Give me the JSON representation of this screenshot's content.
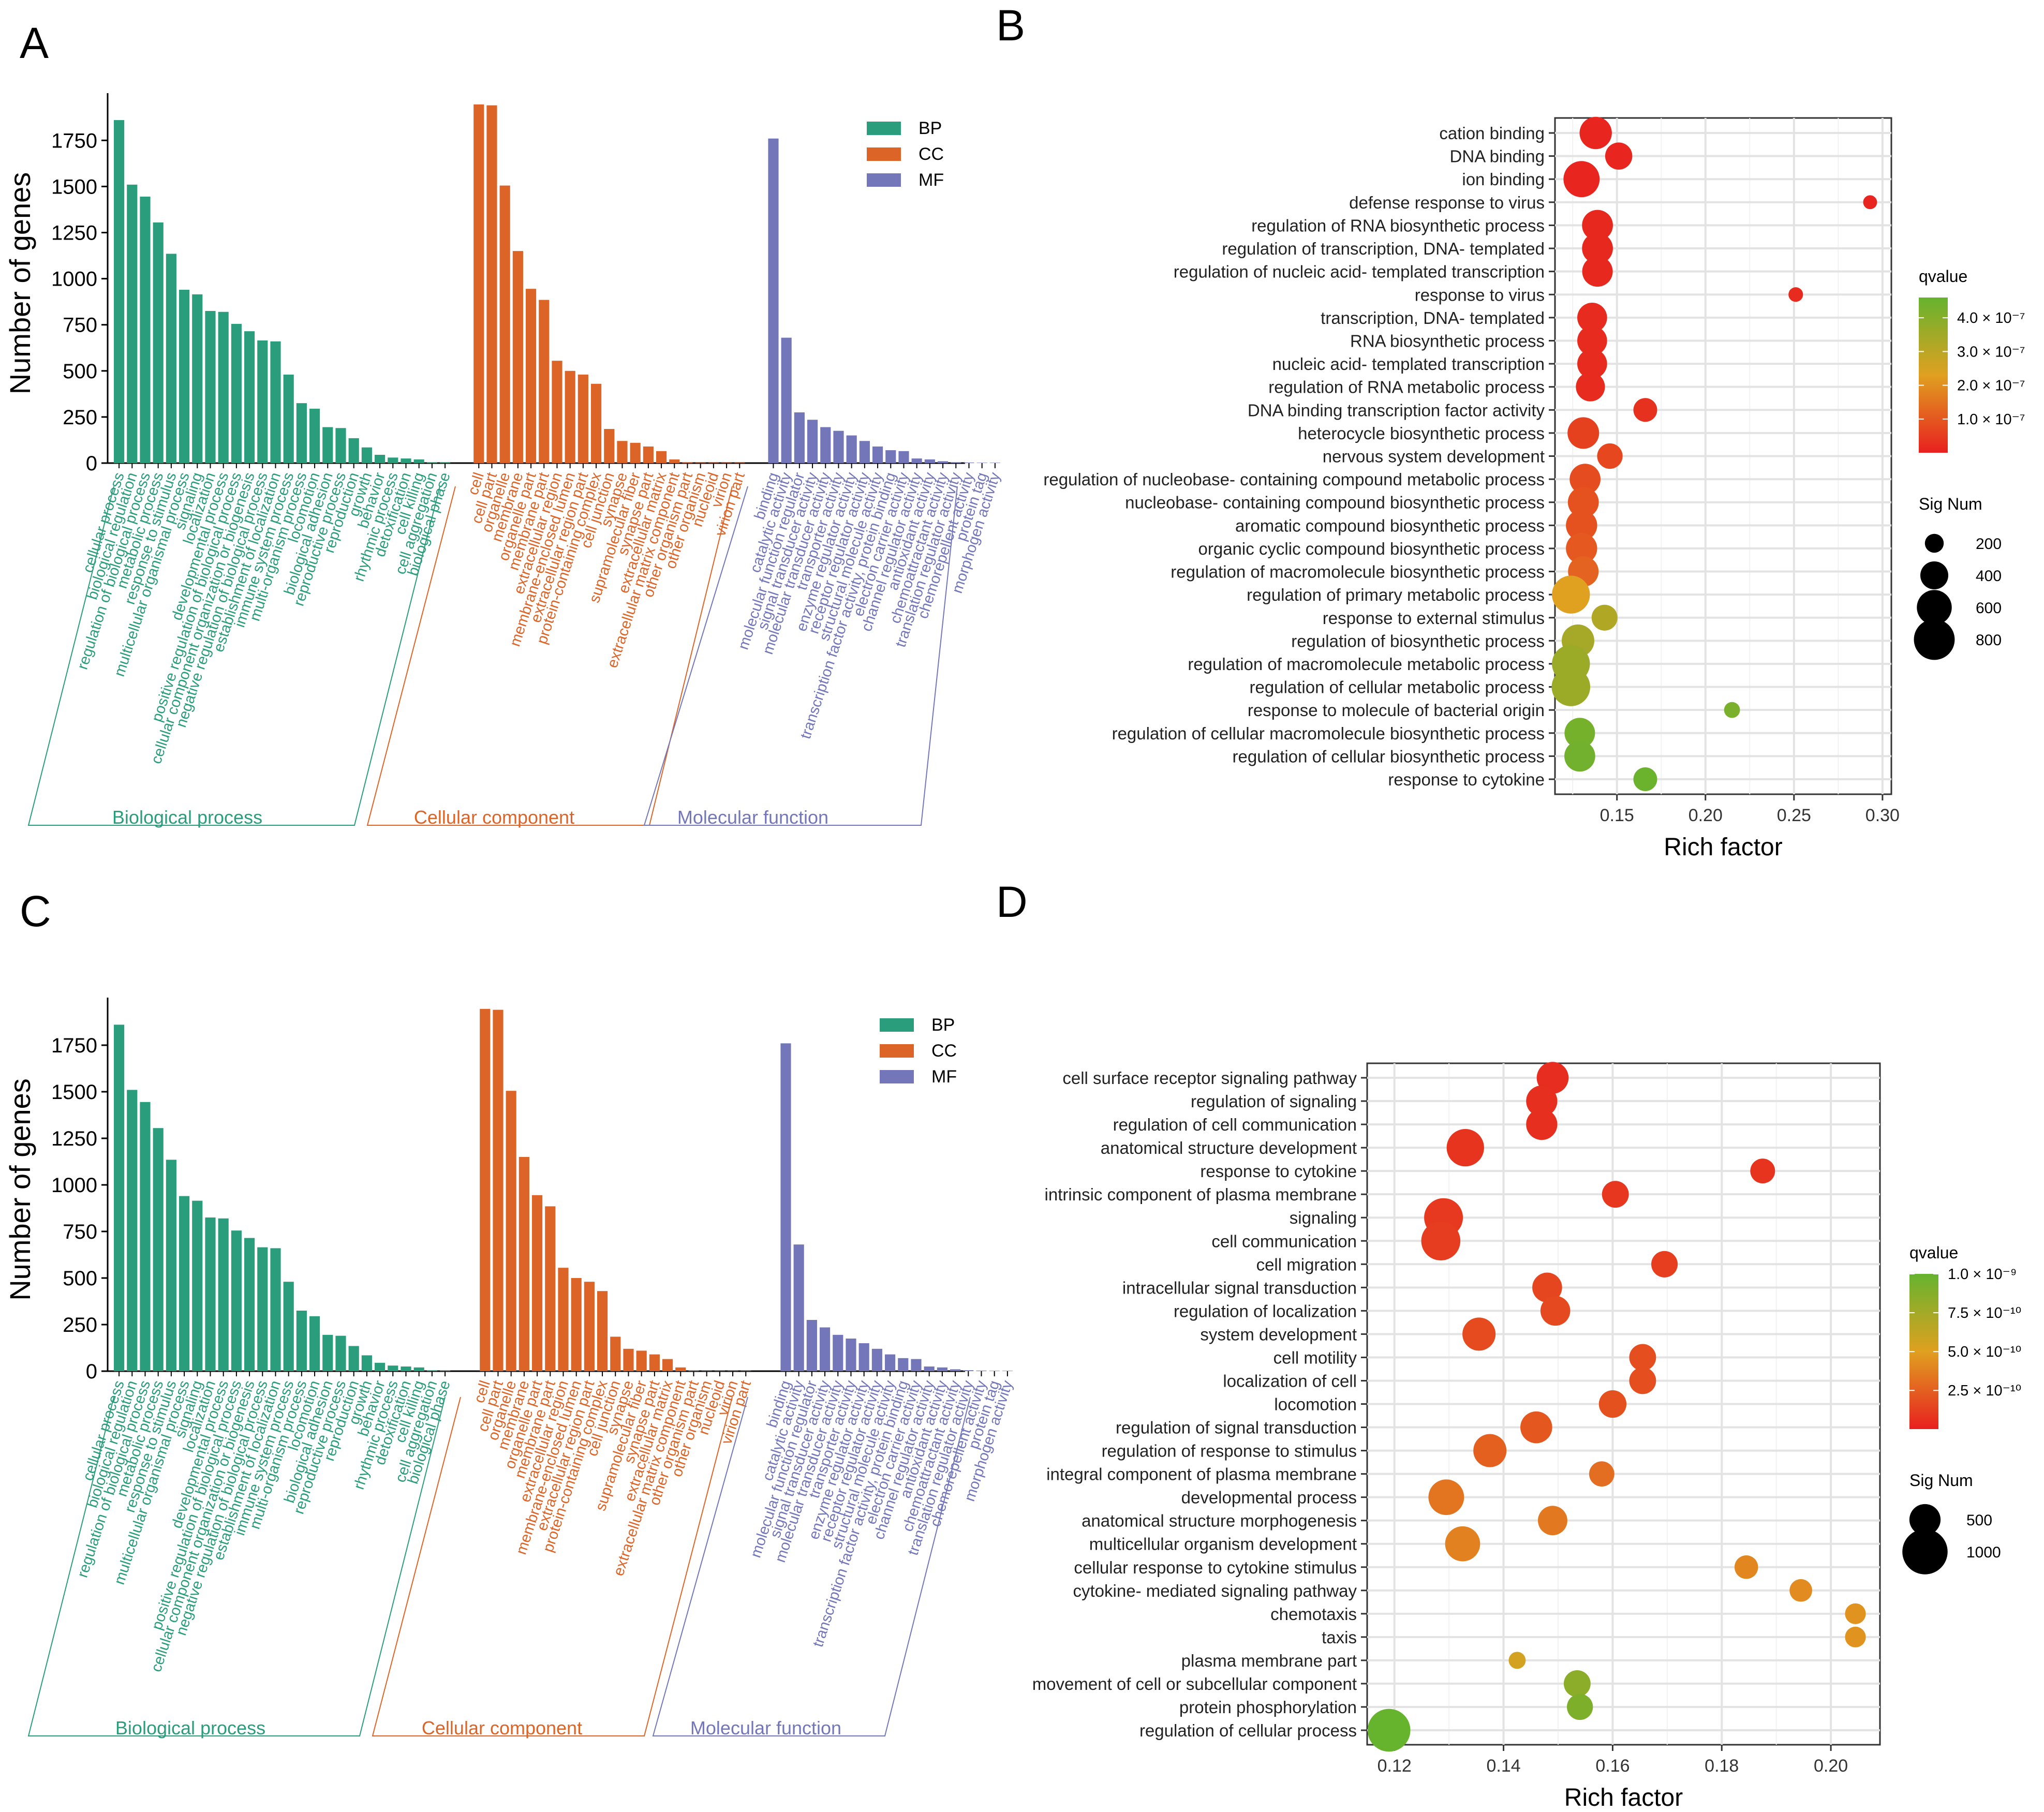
{
  "colors": {
    "bp": "#2a9d7c",
    "cc": "#dd6427",
    "mf": "#7377b9",
    "q_high": "#e8201f",
    "q_mid": "#e0a020",
    "q_low": "#66b32e"
  },
  "chart_data": [
    {
      "panel": "A",
      "type": "bar",
      "ylabel": "Number of genes",
      "ylim": [
        0,
        1950
      ],
      "yticks": [
        "0",
        "250",
        "500",
        "750",
        "1000",
        "1250",
        "1500",
        "1750"
      ],
      "legend": [
        "BP",
        "CC",
        "MF"
      ],
      "groups": [
        {
          "key": "BP",
          "name": "Biological process",
          "categories": [
            "cellular process",
            "biological regulation",
            "regulation of biological process",
            "metabolic process",
            "response to stimulus",
            "multicellular organismal process",
            "signaling",
            "localization",
            "developmental process",
            "positive regulation of biological process",
            "cellular component organization or biogenesis",
            "negative regulation of biological process",
            "establishment of localization",
            "immune system process",
            "multi-organism process",
            "locomotion",
            "biological adhesion",
            "reproductive process",
            "reproduction",
            "growth",
            "behavior",
            "rhythmic process",
            "detoxification",
            "cell killing",
            "cell aggregation",
            "biological phase"
          ],
          "values": [
            1860,
            1510,
            1445,
            1305,
            1135,
            940,
            915,
            825,
            820,
            755,
            715,
            665,
            660,
            480,
            325,
            295,
            195,
            190,
            135,
            85,
            45,
            30,
            25,
            20,
            5,
            3
          ]
        },
        {
          "key": "CC",
          "name": "Cellular component",
          "categories": [
            "cell",
            "cell part",
            "organelle",
            "membrane",
            "organelle part",
            "membrane part",
            "extracellular region",
            "membrane-enclosed lumen",
            "extracellular region part",
            "protein-containing complex",
            "cell junction",
            "synapse",
            "supramolecular fiber",
            "synapse part",
            "extracellular matrix",
            "extracellular matrix component",
            "other organism part",
            "other organism",
            "nucleoid",
            "virion",
            "virion part"
          ],
          "values": [
            1945,
            1940,
            1505,
            1150,
            945,
            885,
            555,
            500,
            480,
            430,
            185,
            120,
            110,
            90,
            65,
            20,
            3,
            2,
            2,
            2,
            2
          ]
        },
        {
          "key": "MF",
          "name": "Molecular function",
          "categories": [
            "binding",
            "catalytic activity",
            "molecular function regulator",
            "signal transducer activity",
            "molecular transducer activity",
            "transporter activity",
            "enzyme regulator activity",
            "receptor regulator activity",
            "structural molecule activity",
            "transcription factor activity, protein binding",
            "electron carrier activity",
            "channel regulator activity",
            "antioxidant activity",
            "chemoattractant activity",
            "translation regulator activity",
            "chemorepellent activity",
            "protein tag",
            "morphogen activity"
          ],
          "values": [
            1760,
            680,
            275,
            235,
            195,
            175,
            150,
            120,
            90,
            70,
            65,
            25,
            20,
            10,
            5,
            3,
            2,
            2
          ]
        }
      ]
    },
    {
      "panel": "B",
      "type": "scatter",
      "xlabel": "Rich factor",
      "xlim": [
        0.115,
        0.305
      ],
      "xticks": [
        "0.15",
        "0.20",
        "0.25",
        "0.30"
      ],
      "legend_color_title": "qvalue",
      "color_range": [
        1e-10,
        4.6e-07
      ],
      "color_ticks": [
        {
          "label": "4.0 × 10⁻⁷",
          "value": 4e-07
        },
        {
          "label": "3.0 × 10⁻⁷",
          "value": 3e-07
        },
        {
          "label": "2.0 × 10⁻⁷",
          "value": 2e-07
        },
        {
          "label": "1.0 × 10⁻⁷",
          "value": 1e-07
        }
      ],
      "legend_size_title": "Sig Num",
      "size_ticks": [
        200,
        400,
        600,
        800
      ],
      "size_range": [
        100,
        900
      ],
      "terms": [
        "cation binding",
        "DNA binding",
        "ion binding",
        "defense response to virus",
        "regulation of RNA biosynthetic process",
        "regulation of transcription, DNA- templated",
        "regulation of nucleic acid- templated transcription",
        "response to virus",
        "transcription, DNA- templated",
        "RNA biosynthetic process",
        "nucleic acid- templated transcription",
        "regulation of RNA metabolic process",
        "DNA binding transcription factor activity",
        "heterocycle biosynthetic process",
        "nervous system development",
        "regulation of nucleobase- containing compound metabolic process",
        "nucleobase- containing compound biosynthetic process",
        "aromatic compound biosynthetic process",
        "organic cyclic compound biosynthetic process",
        "regulation of macromolecule biosynthetic process",
        "regulation of primary metabolic process",
        "response to external stimulus",
        "regulation of biosynthetic process",
        "regulation of macromolecule metabolic process",
        "regulation of cellular metabolic process",
        "response to molecule of bacterial origin",
        "regulation of cellular macromolecule biosynthetic process",
        "regulation of cellular biosynthetic process",
        "response to cytokine"
      ],
      "x": [
        0.138,
        0.151,
        0.13,
        0.293,
        0.139,
        0.139,
        0.139,
        0.251,
        0.136,
        0.136,
        0.136,
        0.135,
        0.166,
        0.131,
        0.146,
        0.132,
        0.131,
        0.13,
        0.13,
        0.131,
        0.124,
        0.143,
        0.128,
        0.124,
        0.124,
        0.215,
        0.129,
        0.129,
        0.166
      ],
      "size": [
        520,
        380,
        640,
        120,
        480,
        480,
        470,
        130,
        450,
        450,
        450,
        430,
        300,
        500,
        340,
        480,
        480,
        490,
        490,
        470,
        700,
        350,
        530,
        700,
        720,
        150,
        470,
        480,
        300
      ],
      "qvalue": [
        1e-08,
        1e-08,
        1e-08,
        1e-08,
        1.5e-08,
        1.5e-08,
        1.5e-08,
        2e-08,
        2e-08,
        2e-08,
        2e-08,
        2e-08,
        3e-08,
        6e-08,
        7e-08,
        8e-08,
        9e-08,
        9e-08,
        1e-07,
        1.2e-07,
        2.3e-07,
        3.2e-07,
        3.4e-07,
        3.6e-07,
        3.6e-07,
        4.2e-07,
        4.3e-07,
        4.4e-07,
        4.5e-07
      ]
    },
    {
      "panel": "C",
      "type": "bar",
      "ylabel": "Number of genes",
      "ylim": [
        0,
        1950
      ],
      "yticks": [
        "0",
        "250",
        "500",
        "750",
        "1000",
        "1250",
        "1500",
        "1750"
      ],
      "legend": [
        "BP",
        "CC",
        "MF"
      ],
      "groups": [
        {
          "key": "BP",
          "name": "Biological process",
          "categories": [
            "cellular process",
            "biological regulation",
            "regulation of biological process",
            "metabolic process",
            "response to stimulus",
            "multicellular organismal process",
            "signaling",
            "localization",
            "developmental process",
            "positive regulation of biological process",
            "cellular component organization or biogenesis",
            "negative regulation of biological process",
            "establishment of localization",
            "immune system process",
            "multi-organism process",
            "locomotion",
            "biological adhesion",
            "reproductive process",
            "reproduction",
            "growth",
            "behavior",
            "rhythmic process",
            "detoxification",
            "cell killing",
            "cell aggregation",
            "biological phase"
          ],
          "values": [
            1860,
            1510,
            1445,
            1305,
            1135,
            940,
            915,
            825,
            820,
            755,
            715,
            665,
            660,
            480,
            325,
            295,
            195,
            190,
            135,
            85,
            45,
            30,
            25,
            20,
            5,
            3
          ]
        },
        {
          "key": "CC",
          "name": "Cellular component",
          "categories": [
            "cell",
            "cell part",
            "organelle",
            "membrane",
            "organelle part",
            "membrane part",
            "extracellular region",
            "membrane-enclosed lumen",
            "extracellular region part",
            "protein-containing complex",
            "cell junction",
            "synapse",
            "supramolecular fiber",
            "synapse part",
            "extracellular matrix",
            "extracellular matrix component",
            "other organism part",
            "other organism",
            "nucleoid",
            "virion",
            "virion part"
          ],
          "values": [
            1945,
            1940,
            1505,
            1150,
            945,
            885,
            555,
            500,
            480,
            430,
            185,
            120,
            110,
            90,
            65,
            20,
            3,
            2,
            2,
            2,
            2
          ]
        },
        {
          "key": "MF",
          "name": "Molecular function",
          "categories": [
            "binding",
            "catalytic activity",
            "molecular function regulator",
            "signal transducer activity",
            "molecular transducer activity",
            "transporter activity",
            "enzyme regulator activity",
            "receptor regulator activity",
            "structural molecule activity",
            "transcription factor activity, protein binding",
            "electron carrier activity",
            "channel regulator activity",
            "antioxidant activity",
            "chemoattractant activity",
            "translation regulator activity",
            "chemorepellent activity",
            "protein tag",
            "morphogen activity"
          ],
          "values": [
            1760,
            680,
            275,
            235,
            195,
            175,
            150,
            120,
            90,
            70,
            65,
            25,
            20,
            10,
            5,
            3,
            2,
            2
          ]
        }
      ]
    },
    {
      "panel": "D",
      "type": "scatter",
      "xlabel": "Rich factor",
      "xlim": [
        0.115,
        0.209
      ],
      "xticks": [
        "0.12",
        "0.14",
        "0.16",
        "0.18",
        "0.20"
      ],
      "legend_color_title": "qvalue",
      "color_range": [
        1e-12,
        1e-09
      ],
      "color_ticks": [
        {
          "label": "1.0 × 10⁻⁹",
          "value": 1e-09
        },
        {
          "label": "7.5 × 10⁻¹⁰",
          "value": 7.5e-10
        },
        {
          "label": "5.0 × 10⁻¹⁰",
          "value": 5e-10
        },
        {
          "label": "2.5 × 10⁻¹⁰",
          "value": 2.5e-10
        }
      ],
      "legend_size_title": "Sig Num",
      "size_ticks": [
        500,
        1000
      ],
      "size_range": [
        100,
        1100
      ],
      "terms": [
        "cell surface receptor signaling pathway",
        "regulation of signaling",
        "regulation of cell communication",
        "anatomical structure development",
        "response to cytokine",
        "intrinsic component of plasma membrane",
        "signaling",
        "cell communication",
        "cell migration",
        "intracellular signal transduction",
        "regulation of localization",
        "system development",
        "cell motility",
        "localization of cell",
        "locomotion",
        "regulation of signal transduction",
        "regulation of response to stimulus",
        "integral component of plasma membrane",
        "developmental process",
        "anatomical structure morphogenesis",
        "multicellular organism development",
        "cellular response to cytokine stimulus",
        "cytokine- mediated signaling pathway",
        "chemotaxis",
        "taxis",
        "plasma membrane part",
        "movement of cell or subcellular component",
        "protein phosphorylation",
        "regulation of cellular process"
      ],
      "x": [
        0.149,
        0.147,
        0.147,
        0.133,
        0.1875,
        0.1605,
        0.129,
        0.1285,
        0.1695,
        0.148,
        0.1495,
        0.1355,
        0.1655,
        0.1655,
        0.16,
        0.146,
        0.1375,
        0.158,
        0.1295,
        0.149,
        0.1325,
        0.1845,
        0.1945,
        0.2045,
        0.2045,
        0.1425,
        0.1535,
        0.154,
        0.119
      ],
      "size": [
        520,
        500,
        500,
        700,
        330,
        380,
        750,
        760,
        370,
        460,
        460,
        560,
        380,
        380,
        400,
        520,
        560,
        340,
        640,
        450,
        620,
        300,
        280,
        240,
        240,
        170,
        380,
        360,
        900
      ],
      "qvalue": [
        5e-11,
        6e-11,
        6e-11,
        8e-11,
        8e-11,
        9e-11,
        1e-10,
        1.1e-10,
        1.2e-10,
        1.5e-10,
        1.6e-10,
        1.7e-10,
        1.8e-10,
        1.8e-10,
        1.9e-10,
        2.2e-10,
        2.5e-10,
        3e-10,
        3.3e-10,
        3.5e-10,
        3.8e-10,
        4e-10,
        4.2e-10,
        4.5e-10,
        4.5e-10,
        5.5e-10,
        8.5e-10,
        9e-10,
        1e-09
      ]
    }
  ]
}
